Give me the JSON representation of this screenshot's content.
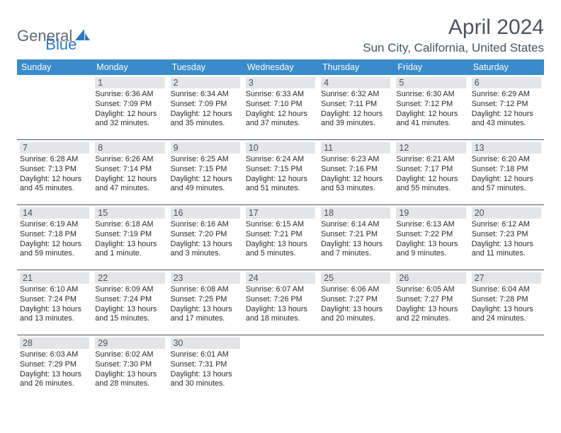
{
  "logo": {
    "part1": "General",
    "part2": "Blue"
  },
  "title": "April 2024",
  "location": "Sun City, California, United States",
  "colors": {
    "header_bg": "#3a8bc9",
    "header_text": "#ffffff",
    "daynum_bg": "#e3e5e7",
    "daynum_text": "#4a5560",
    "rule": "#4a5560",
    "accent": "#2f78bd",
    "logo_gray": "#5e6b76"
  },
  "daysOfWeek": [
    "Sunday",
    "Monday",
    "Tuesday",
    "Wednesday",
    "Thursday",
    "Friday",
    "Saturday"
  ],
  "weeks": [
    [
      {
        "day": "",
        "sunrise": "",
        "sunset": "",
        "daylight1": "",
        "daylight2": ""
      },
      {
        "day": "1",
        "sunrise": "Sunrise: 6:36 AM",
        "sunset": "Sunset: 7:09 PM",
        "daylight1": "Daylight: 12 hours",
        "daylight2": "and 32 minutes."
      },
      {
        "day": "2",
        "sunrise": "Sunrise: 6:34 AM",
        "sunset": "Sunset: 7:09 PM",
        "daylight1": "Daylight: 12 hours",
        "daylight2": "and 35 minutes."
      },
      {
        "day": "3",
        "sunrise": "Sunrise: 6:33 AM",
        "sunset": "Sunset: 7:10 PM",
        "daylight1": "Daylight: 12 hours",
        "daylight2": "and 37 minutes."
      },
      {
        "day": "4",
        "sunrise": "Sunrise: 6:32 AM",
        "sunset": "Sunset: 7:11 PM",
        "daylight1": "Daylight: 12 hours",
        "daylight2": "and 39 minutes."
      },
      {
        "day": "5",
        "sunrise": "Sunrise: 6:30 AM",
        "sunset": "Sunset: 7:12 PM",
        "daylight1": "Daylight: 12 hours",
        "daylight2": "and 41 minutes."
      },
      {
        "day": "6",
        "sunrise": "Sunrise: 6:29 AM",
        "sunset": "Sunset: 7:12 PM",
        "daylight1": "Daylight: 12 hours",
        "daylight2": "and 43 minutes."
      }
    ],
    [
      {
        "day": "7",
        "sunrise": "Sunrise: 6:28 AM",
        "sunset": "Sunset: 7:13 PM",
        "daylight1": "Daylight: 12 hours",
        "daylight2": "and 45 minutes."
      },
      {
        "day": "8",
        "sunrise": "Sunrise: 6:26 AM",
        "sunset": "Sunset: 7:14 PM",
        "daylight1": "Daylight: 12 hours",
        "daylight2": "and 47 minutes."
      },
      {
        "day": "9",
        "sunrise": "Sunrise: 6:25 AM",
        "sunset": "Sunset: 7:15 PM",
        "daylight1": "Daylight: 12 hours",
        "daylight2": "and 49 minutes."
      },
      {
        "day": "10",
        "sunrise": "Sunrise: 6:24 AM",
        "sunset": "Sunset: 7:15 PM",
        "daylight1": "Daylight: 12 hours",
        "daylight2": "and 51 minutes."
      },
      {
        "day": "11",
        "sunrise": "Sunrise: 6:23 AM",
        "sunset": "Sunset: 7:16 PM",
        "daylight1": "Daylight: 12 hours",
        "daylight2": "and 53 minutes."
      },
      {
        "day": "12",
        "sunrise": "Sunrise: 6:21 AM",
        "sunset": "Sunset: 7:17 PM",
        "daylight1": "Daylight: 12 hours",
        "daylight2": "and 55 minutes."
      },
      {
        "day": "13",
        "sunrise": "Sunrise: 6:20 AM",
        "sunset": "Sunset: 7:18 PM",
        "daylight1": "Daylight: 12 hours",
        "daylight2": "and 57 minutes."
      }
    ],
    [
      {
        "day": "14",
        "sunrise": "Sunrise: 6:19 AM",
        "sunset": "Sunset: 7:18 PM",
        "daylight1": "Daylight: 12 hours",
        "daylight2": "and 59 minutes."
      },
      {
        "day": "15",
        "sunrise": "Sunrise: 6:18 AM",
        "sunset": "Sunset: 7:19 PM",
        "daylight1": "Daylight: 13 hours",
        "daylight2": "and 1 minute."
      },
      {
        "day": "16",
        "sunrise": "Sunrise: 6:16 AM",
        "sunset": "Sunset: 7:20 PM",
        "daylight1": "Daylight: 13 hours",
        "daylight2": "and 3 minutes."
      },
      {
        "day": "17",
        "sunrise": "Sunrise: 6:15 AM",
        "sunset": "Sunset: 7:21 PM",
        "daylight1": "Daylight: 13 hours",
        "daylight2": "and 5 minutes."
      },
      {
        "day": "18",
        "sunrise": "Sunrise: 6:14 AM",
        "sunset": "Sunset: 7:21 PM",
        "daylight1": "Daylight: 13 hours",
        "daylight2": "and 7 minutes."
      },
      {
        "day": "19",
        "sunrise": "Sunrise: 6:13 AM",
        "sunset": "Sunset: 7:22 PM",
        "daylight1": "Daylight: 13 hours",
        "daylight2": "and 9 minutes."
      },
      {
        "day": "20",
        "sunrise": "Sunrise: 6:12 AM",
        "sunset": "Sunset: 7:23 PM",
        "daylight1": "Daylight: 13 hours",
        "daylight2": "and 11 minutes."
      }
    ],
    [
      {
        "day": "21",
        "sunrise": "Sunrise: 6:10 AM",
        "sunset": "Sunset: 7:24 PM",
        "daylight1": "Daylight: 13 hours",
        "daylight2": "and 13 minutes."
      },
      {
        "day": "22",
        "sunrise": "Sunrise: 6:09 AM",
        "sunset": "Sunset: 7:24 PM",
        "daylight1": "Daylight: 13 hours",
        "daylight2": "and 15 minutes."
      },
      {
        "day": "23",
        "sunrise": "Sunrise: 6:08 AM",
        "sunset": "Sunset: 7:25 PM",
        "daylight1": "Daylight: 13 hours",
        "daylight2": "and 17 minutes."
      },
      {
        "day": "24",
        "sunrise": "Sunrise: 6:07 AM",
        "sunset": "Sunset: 7:26 PM",
        "daylight1": "Daylight: 13 hours",
        "daylight2": "and 18 minutes."
      },
      {
        "day": "25",
        "sunrise": "Sunrise: 6:06 AM",
        "sunset": "Sunset: 7:27 PM",
        "daylight1": "Daylight: 13 hours",
        "daylight2": "and 20 minutes."
      },
      {
        "day": "26",
        "sunrise": "Sunrise: 6:05 AM",
        "sunset": "Sunset: 7:27 PM",
        "daylight1": "Daylight: 13 hours",
        "daylight2": "and 22 minutes."
      },
      {
        "day": "27",
        "sunrise": "Sunrise: 6:04 AM",
        "sunset": "Sunset: 7:28 PM",
        "daylight1": "Daylight: 13 hours",
        "daylight2": "and 24 minutes."
      }
    ],
    [
      {
        "day": "28",
        "sunrise": "Sunrise: 6:03 AM",
        "sunset": "Sunset: 7:29 PM",
        "daylight1": "Daylight: 13 hours",
        "daylight2": "and 26 minutes."
      },
      {
        "day": "29",
        "sunrise": "Sunrise: 6:02 AM",
        "sunset": "Sunset: 7:30 PM",
        "daylight1": "Daylight: 13 hours",
        "daylight2": "and 28 minutes."
      },
      {
        "day": "30",
        "sunrise": "Sunrise: 6:01 AM",
        "sunset": "Sunset: 7:31 PM",
        "daylight1": "Daylight: 13 hours",
        "daylight2": "and 30 minutes."
      },
      {
        "day": "",
        "sunrise": "",
        "sunset": "",
        "daylight1": "",
        "daylight2": ""
      },
      {
        "day": "",
        "sunrise": "",
        "sunset": "",
        "daylight1": "",
        "daylight2": ""
      },
      {
        "day": "",
        "sunrise": "",
        "sunset": "",
        "daylight1": "",
        "daylight2": ""
      },
      {
        "day": "",
        "sunrise": "",
        "sunset": "",
        "daylight1": "",
        "daylight2": ""
      }
    ]
  ]
}
